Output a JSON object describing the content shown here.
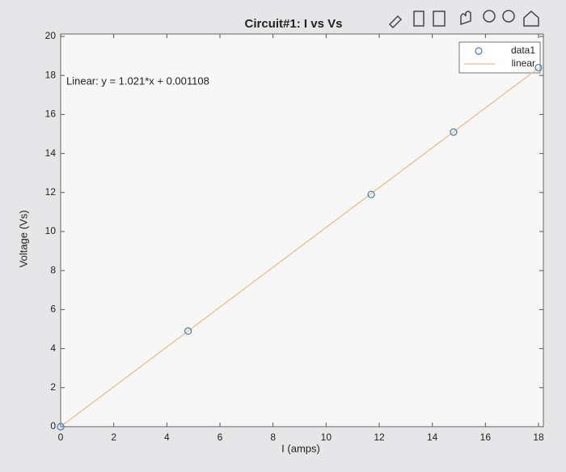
{
  "chart_data": {
    "type": "scatter",
    "title": "Circuit#1: I vs Vs",
    "x_label": "I (amps)",
    "y_label": "Voltage (Vs)",
    "annotation": "Linear: y = 1.021*x + 0.001108",
    "series": [
      {
        "name": "data1",
        "type": "scatter",
        "color": "#3a7fc0",
        "x": [
          0,
          4.8,
          11.7,
          14.8,
          18
        ],
        "values": [
          0,
          4.9,
          11.9,
          15.1,
          18.4
        ]
      },
      {
        "name": "linear",
        "type": "line",
        "color": "#f2b878",
        "x": [
          0,
          18
        ],
        "values": [
          0.001108,
          18.379
        ]
      }
    ],
    "xlim": [
      0,
      18
    ],
    "ylim": [
      0,
      20
    ],
    "xticks": [
      0,
      2,
      4,
      6,
      8,
      10,
      12,
      14,
      16,
      18
    ],
    "yticks": [
      0,
      2,
      4,
      6,
      8,
      10,
      12,
      14,
      16,
      18,
      20
    ],
    "grid": false,
    "legend": "top-right"
  }
}
